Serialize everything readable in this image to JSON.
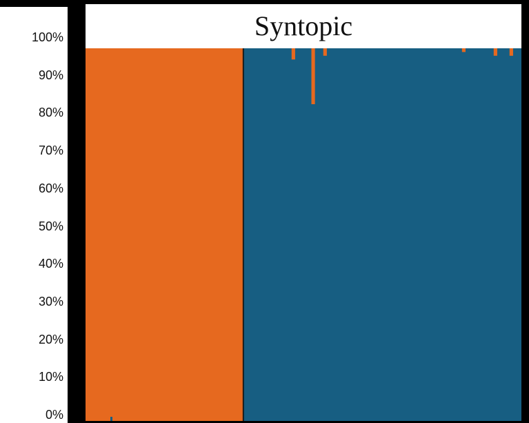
{
  "chart_data": {
    "type": "bar",
    "stacked": true,
    "title": "Syntopic",
    "ylim": [
      0,
      1
    ],
    "yticks": [
      "0%",
      "10%",
      "20%",
      "30%",
      "40%",
      "50%",
      "60%",
      "70%",
      "80%",
      "90%",
      "100%"
    ],
    "xlabel": "",
    "ylabel": "",
    "colors": {
      "orange": "#E6691F",
      "blue": "#175E82",
      "divider": "#1a1a1a"
    },
    "groups": [
      {
        "color": "orange",
        "count": 40,
        "blue_fraction": 0.0,
        "dips": []
      },
      {
        "color": "blue",
        "count": 70,
        "blue_fraction": 1.0,
        "dips": [
          {
            "index": 12,
            "orange_fraction": 0.03
          },
          {
            "index": 17,
            "orange_fraction": 0.15
          },
          {
            "index": 20,
            "orange_fraction": 0.02
          },
          {
            "index": 55,
            "orange_fraction": 0.01
          },
          {
            "index": 63,
            "orange_fraction": 0.02
          },
          {
            "index": 67,
            "orange_fraction": 0.02
          }
        ]
      }
    ]
  }
}
